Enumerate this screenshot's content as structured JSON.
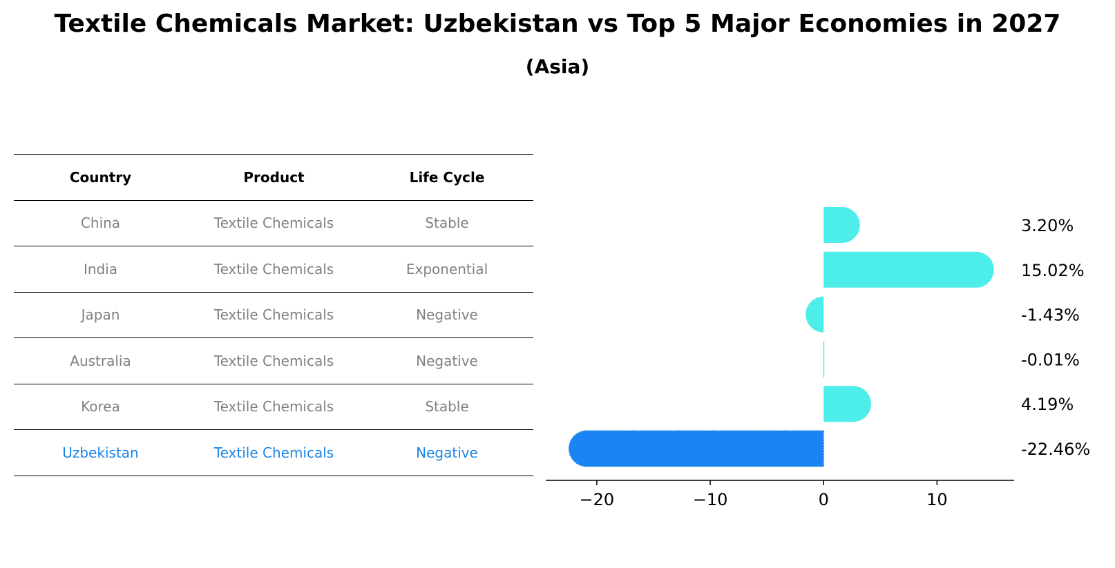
{
  "title": "Textile Chemicals Market: Uzbekistan vs Top 5 Major Economies in 2027",
  "subtitle": "(Asia)",
  "table": {
    "headers": [
      "Country",
      "Product",
      "Life Cycle"
    ],
    "rows": [
      {
        "country": "China",
        "product": "Textile Chemicals",
        "life_cycle": "Stable"
      },
      {
        "country": "India",
        "product": "Textile Chemicals",
        "life_cycle": "Exponential"
      },
      {
        "country": "Japan",
        "product": "Textile Chemicals",
        "life_cycle": "Negative"
      },
      {
        "country": "Australia",
        "product": "Textile Chemicals",
        "life_cycle": "Negative"
      },
      {
        "country": "Korea",
        "product": "Textile Chemicals",
        "life_cycle": "Stable"
      },
      {
        "country": "Uzbekistan",
        "product": "Textile Chemicals",
        "life_cycle": "Negative"
      }
    ]
  },
  "colors": {
    "peer_bar": "#4deee9",
    "highlight_bar": "#1a84f5",
    "highlight_text": "#1a84e8",
    "muted_text": "#808080"
  },
  "chart_data": {
    "type": "bar",
    "orientation": "horizontal",
    "categories": [
      "China",
      "India",
      "Japan",
      "Australia",
      "Korea",
      "Uzbekistan"
    ],
    "values": [
      3.2,
      15.02,
      -1.43,
      -0.01,
      4.19,
      -22.46
    ],
    "value_labels": [
      "3.20%",
      "15.02%",
      "-1.43%",
      "-0.01%",
      "4.19%",
      "-22.46%"
    ],
    "highlight": "Uzbekistan",
    "xlim": [
      -24.5,
      16.8
    ],
    "xticks": [
      -20,
      -10,
      0,
      10
    ],
    "xtick_labels": [
      "−20",
      "−10",
      "0",
      "10"
    ],
    "grid": false,
    "legend": "none"
  }
}
